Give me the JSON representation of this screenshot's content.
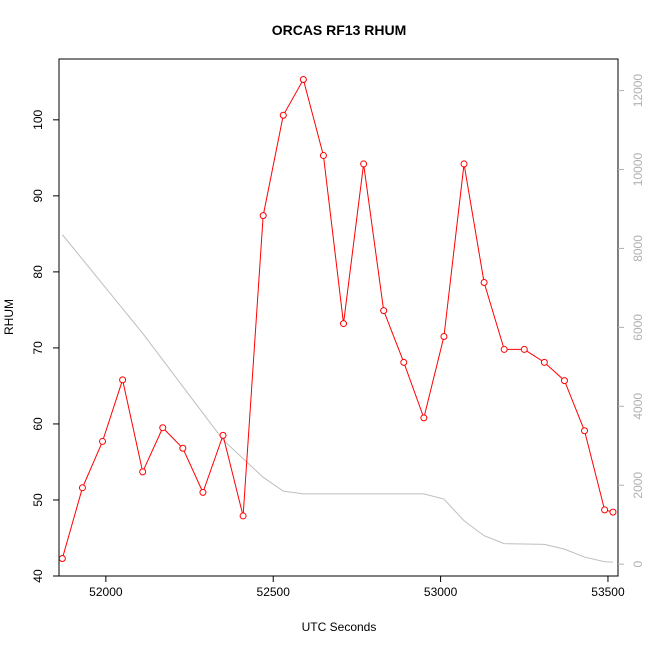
{
  "chart_data": {
    "type": "line",
    "title": "ORCAS RF13 RHUM",
    "xlabel": "UTC Seconds",
    "ylabel": "RHUM",
    "xlim": [
      51860,
      53530
    ],
    "ylim": [
      40,
      108
    ],
    "y2lim": [
      -300,
      12800
    ],
    "x_ticks": [
      52000,
      52500,
      53000,
      53500
    ],
    "y_ticks": [
      40,
      50,
      60,
      70,
      80,
      90,
      100
    ],
    "y2_ticks": [
      0,
      2000,
      4000,
      6000,
      8000,
      10000,
      12000
    ],
    "colors": {
      "series": "#ff0000",
      "secondary": "#bebebe",
      "axis": "#000000",
      "axis_right": "#b0b0b0"
    },
    "series": [
      {
        "axis": "left",
        "x": [
          51870,
          51930,
          51990,
          52050,
          52110,
          52170,
          52230,
          52290,
          52350,
          52410,
          52470,
          52530,
          52590,
          52650,
          52710,
          52770,
          52830,
          52890,
          52950,
          53010,
          53070,
          53130,
          53190,
          53250,
          53310,
          53370,
          53430,
          53490,
          53515
        ],
        "values": [
          42.3,
          51.6,
          57.7,
          65.8,
          53.7,
          59.5,
          56.8,
          51.0,
          58.5,
          47.9,
          87.4,
          100.6,
          105.3,
          95.3,
          73.2,
          94.2,
          74.9,
          68.1,
          60.8,
          71.5,
          94.2,
          78.6,
          69.8,
          69.8,
          68.1,
          65.7,
          59.1,
          48.7,
          48.4
        ]
      },
      {
        "axis": "right",
        "x": [
          51870,
          51990,
          52110,
          52230,
          52350,
          52470,
          52530,
          52590,
          52650,
          52710,
          52770,
          52830,
          52890,
          52950,
          53010,
          53070,
          53130,
          53190,
          53250,
          53310,
          53370,
          53430,
          53490,
          53515
        ],
        "values": [
          8350,
          7100,
          5850,
          4500,
          3150,
          2200,
          1850,
          1780,
          1780,
          1780,
          1780,
          1780,
          1780,
          1780,
          1650,
          1100,
          720,
          520,
          510,
          500,
          380,
          180,
          60,
          50
        ]
      }
    ]
  }
}
